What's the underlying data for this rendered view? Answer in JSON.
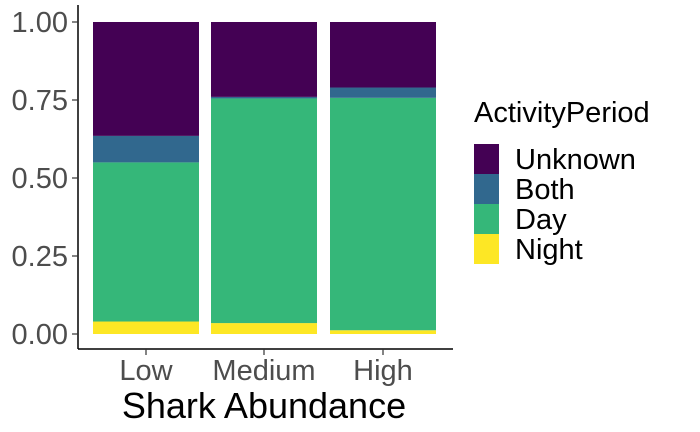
{
  "chart_data": {
    "type": "bar",
    "stacked": true,
    "categories": [
      "Low",
      "Medium",
      "High"
    ],
    "series": [
      {
        "name": "Night",
        "color": "#FDE725",
        "values": [
          0.04,
          0.035,
          0.012
        ]
      },
      {
        "name": "Day",
        "color": "#35B779",
        "values": [
          0.51,
          0.72,
          0.745
        ]
      },
      {
        "name": "Both",
        "color": "#31688E",
        "values": [
          0.085,
          0.005,
          0.033
        ]
      },
      {
        "name": "Unknown",
        "color": "#440154",
        "values": [
          0.365,
          0.24,
          0.21
        ]
      }
    ],
    "ylim": [
      0,
      1
    ],
    "yticks": [
      "0.00",
      "0.25",
      "0.50",
      "0.75",
      "1.00"
    ],
    "xlabel": "Shark Abundance",
    "ylabel": "",
    "legend": {
      "title": "ActivityPeriod",
      "position": "right",
      "order": [
        "Unknown",
        "Both",
        "Day",
        "Night"
      ]
    },
    "grid": false
  }
}
